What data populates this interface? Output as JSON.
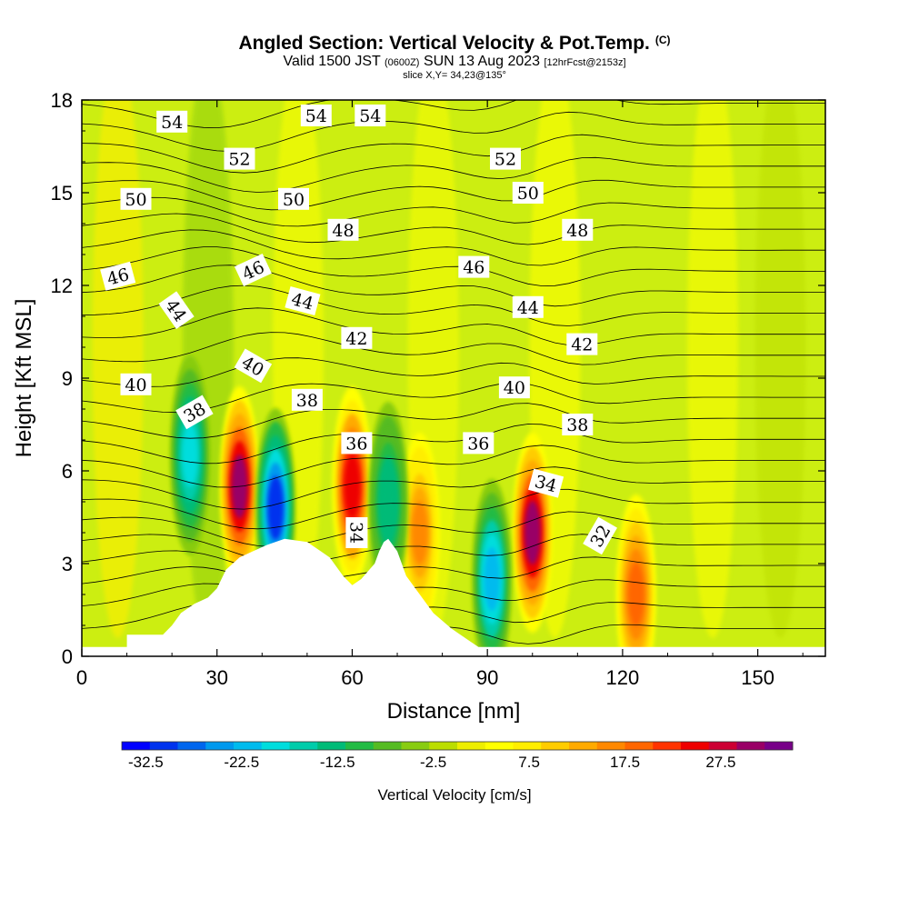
{
  "header": {
    "title": "Angled Section: Vertical Velocity & Pot.Temp.",
    "title_tag": "(C)",
    "valid_prefix": "Valid 1500 JST",
    "valid_utc": "(0600Z)",
    "valid_date": "SUN 13 Aug 2023",
    "forecast_tag": "[12hrFcst@2153z]",
    "slice": "slice X,Y= 34,23@135°"
  },
  "chart_data": {
    "type": "heatmap",
    "title": "Angled Section: Vertical Velocity & Pot.Temp.",
    "xlabel": "Distance [nm]",
    "ylabel": "Height [Kft MSL]",
    "xlim": [
      0,
      165
    ],
    "ylim": [
      0,
      18
    ],
    "x_ticks": [
      0,
      30,
      60,
      90,
      120,
      150
    ],
    "y_ticks": [
      0,
      3,
      6,
      9,
      12,
      15,
      18
    ],
    "colorbar": {
      "title": "Vertical Velocity [cm/s]",
      "tick_labels": [
        "-32.5",
        "-22.5",
        "-12.5",
        "-2.5",
        "7.5",
        "17.5",
        "27.5"
      ],
      "tick_values": [
        -32.5,
        -22.5,
        -12.5,
        -2.5,
        7.5,
        17.5,
        27.5
      ],
      "min": -35,
      "max": 35,
      "colors": [
        "#0000ff",
        "#0033ee",
        "#0066ee",
        "#0099ee",
        "#00bbee",
        "#00dddd",
        "#00ccaa",
        "#00bb77",
        "#22bb44",
        "#55bb22",
        "#88cc11",
        "#bbdd00",
        "#eeee00",
        "#ffff00",
        "#ffee00",
        "#ffcc00",
        "#ffaa00",
        "#ff8800",
        "#ff6600",
        "#ff3300",
        "#ee0000",
        "#cc0033",
        "#990066",
        "#770088"
      ]
    },
    "updraft_cores": [
      {
        "x": 35,
        "y": 5.5,
        "value": 30
      },
      {
        "x": 60,
        "y": 5.5,
        "value": 25
      },
      {
        "x": 100,
        "y": 4.0,
        "value": 30
      },
      {
        "x": 123,
        "y": 2.0,
        "value": 20
      },
      {
        "x": 75,
        "y": 4.0,
        "value": 15
      }
    ],
    "downdraft_cores": [
      {
        "x": 43,
        "y": 4.8,
        "value": -30
      },
      {
        "x": 24,
        "y": 6.5,
        "value": -18
      },
      {
        "x": 91,
        "y": 2.5,
        "value": -22
      },
      {
        "x": 68,
        "y": 5.0,
        "value": -14
      }
    ],
    "terrain_profile": [
      [
        0,
        0.3
      ],
      [
        10,
        0.3
      ],
      [
        10,
        0.7
      ],
      [
        18,
        0.7
      ],
      [
        20,
        1.0
      ],
      [
        22,
        1.4
      ],
      [
        25,
        1.7
      ],
      [
        28,
        1.9
      ],
      [
        30,
        2.2
      ],
      [
        32,
        2.8
      ],
      [
        35,
        3.2
      ],
      [
        38,
        3.4
      ],
      [
        41,
        3.6
      ],
      [
        45,
        3.8
      ],
      [
        50,
        3.7
      ],
      [
        53,
        3.4
      ],
      [
        55,
        3.2
      ],
      [
        58,
        2.6
      ],
      [
        60,
        2.3
      ],
      [
        62,
        2.5
      ],
      [
        65,
        3.0
      ],
      [
        66,
        3.4
      ],
      [
        67,
        3.7
      ],
      [
        68,
        3.8
      ],
      [
        70,
        3.4
      ],
      [
        72,
        2.6
      ],
      [
        75,
        2.0
      ],
      [
        78,
        1.4
      ],
      [
        82,
        0.9
      ],
      [
        85,
        0.6
      ],
      [
        88,
        0.3
      ],
      [
        165,
        0.3
      ]
    ],
    "contour_labels": [
      {
        "text": "54",
        "x": 20,
        "y": 17.3,
        "angle": 0
      },
      {
        "text": "54",
        "x": 52,
        "y": 17.5,
        "angle": 0
      },
      {
        "text": "54",
        "x": 64,
        "y": 17.5,
        "angle": 0
      },
      {
        "text": "52",
        "x": 35,
        "y": 16.1,
        "angle": 0
      },
      {
        "text": "52",
        "x": 94,
        "y": 16.1,
        "angle": 0
      },
      {
        "text": "50",
        "x": 12,
        "y": 14.8,
        "angle": 0
      },
      {
        "text": "50",
        "x": 47,
        "y": 14.8,
        "angle": 0
      },
      {
        "text": "50",
        "x": 99,
        "y": 15.0,
        "angle": 0
      },
      {
        "text": "48",
        "x": 58,
        "y": 13.8,
        "angle": 0
      },
      {
        "text": "48",
        "x": 110,
        "y": 13.8,
        "angle": 0
      },
      {
        "text": "46",
        "x": 8,
        "y": 12.3,
        "angle": -15
      },
      {
        "text": "46",
        "x": 38,
        "y": 12.5,
        "angle": -25
      },
      {
        "text": "46",
        "x": 87,
        "y": 12.6,
        "angle": 0
      },
      {
        "text": "44",
        "x": 21,
        "y": 11.2,
        "angle": 55
      },
      {
        "text": "44",
        "x": 49,
        "y": 11.5,
        "angle": 15
      },
      {
        "text": "44",
        "x": 99,
        "y": 11.3,
        "angle": 0
      },
      {
        "text": "42",
        "x": 61,
        "y": 10.3,
        "angle": 0
      },
      {
        "text": "42",
        "x": 111,
        "y": 10.1,
        "angle": 0
      },
      {
        "text": "40",
        "x": 12,
        "y": 8.8,
        "angle": 0
      },
      {
        "text": "40",
        "x": 38,
        "y": 9.4,
        "angle": 30
      },
      {
        "text": "40",
        "x": 96,
        "y": 8.7,
        "angle": 0
      },
      {
        "text": "38",
        "x": 25,
        "y": 7.9,
        "angle": -30
      },
      {
        "text": "38",
        "x": 50,
        "y": 8.3,
        "angle": 0
      },
      {
        "text": "38",
        "x": 110,
        "y": 7.5,
        "angle": 0
      },
      {
        "text": "36",
        "x": 61,
        "y": 6.9,
        "angle": 0
      },
      {
        "text": "36",
        "x": 88,
        "y": 6.9,
        "angle": 0
      },
      {
        "text": "34",
        "x": 61,
        "y": 4.0,
        "angle": 90
      },
      {
        "text": "34",
        "x": 103,
        "y": 5.6,
        "angle": 15
      },
      {
        "text": "32",
        "x": 115,
        "y": 3.9,
        "angle": -60
      }
    ]
  }
}
